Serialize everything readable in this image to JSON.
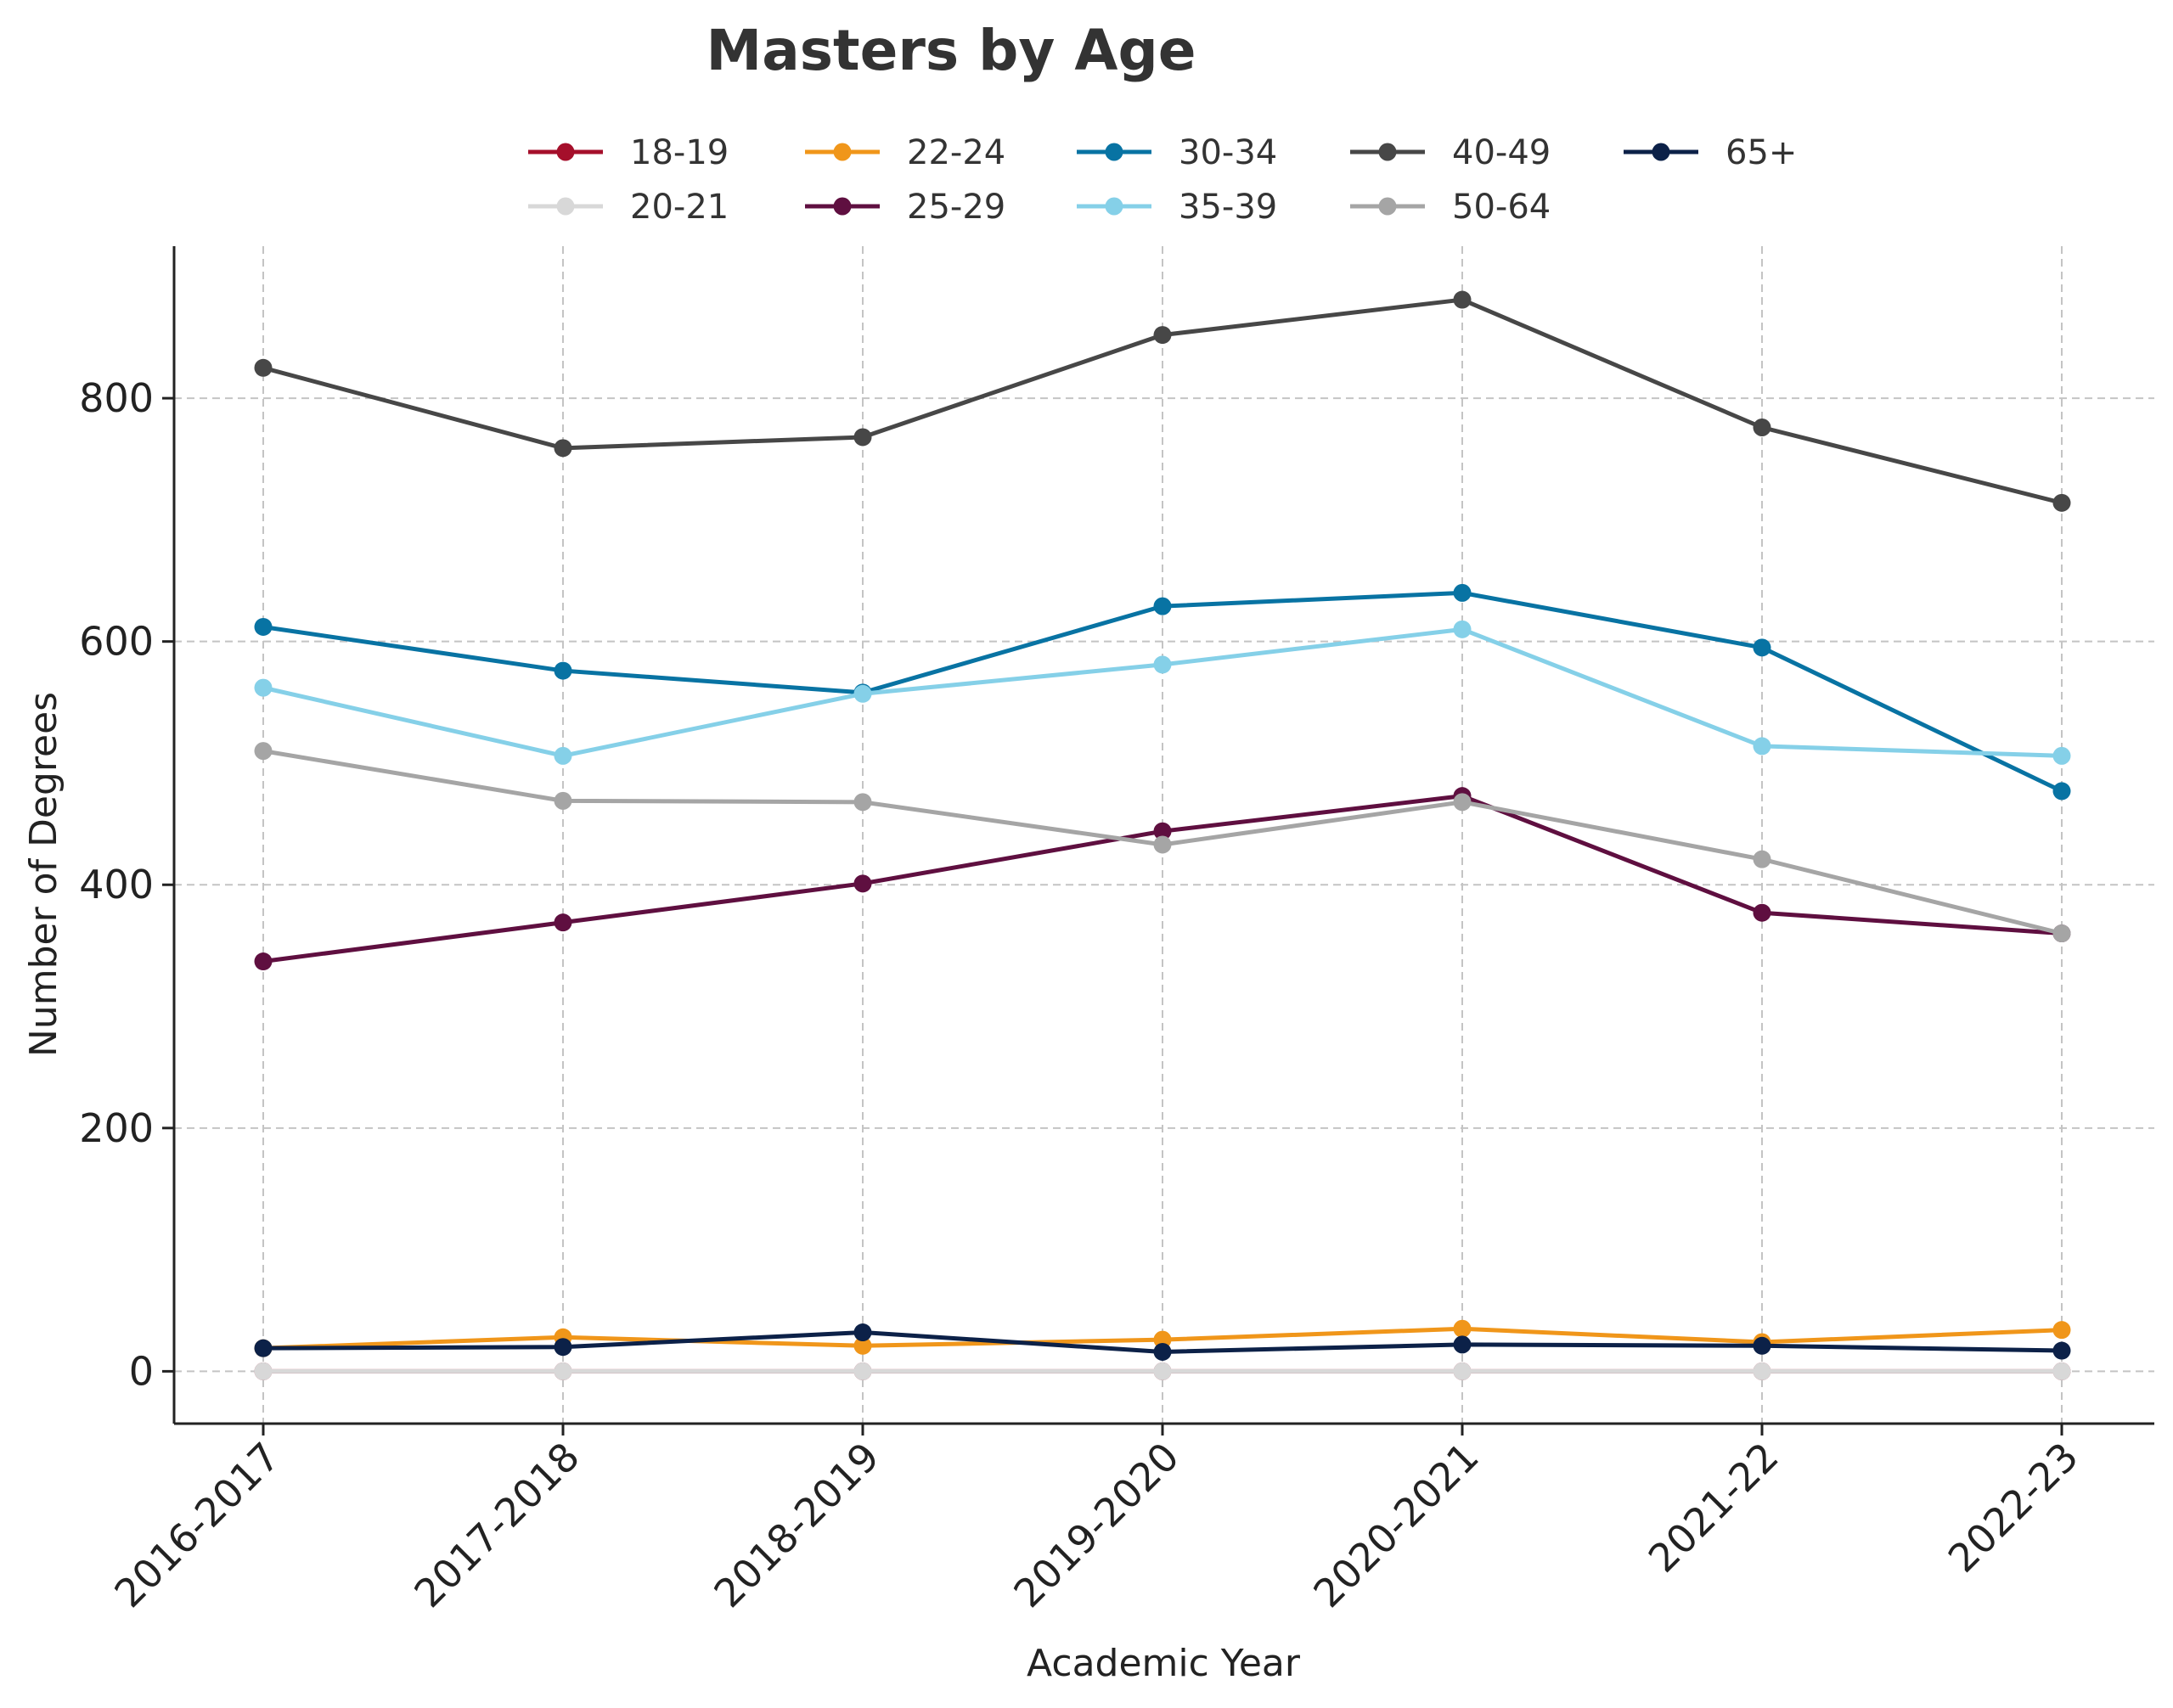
{
  "chart_data": {
    "type": "line",
    "title": "Masters by Age",
    "xlabel": "Academic Year",
    "ylabel": "Number of Degrees",
    "categories": [
      "2016-2017",
      "2017-2018",
      "2018-2019",
      "2019-2020",
      "2020-2021",
      "2021-22",
      "2022-23"
    ],
    "ylim": [
      -43,
      925
    ],
    "yticks": [
      0,
      200,
      400,
      600,
      800
    ],
    "grid": true,
    "legend": "top-center",
    "series": [
      {
        "name": "18-19",
        "color": "#A50F2B",
        "values": [
          0,
          0,
          0,
          0,
          0,
          0,
          0
        ]
      },
      {
        "name": "20-21",
        "color": "#D8D8D8",
        "values": [
          0,
          0,
          0,
          0,
          0,
          0,
          0
        ]
      },
      {
        "name": "22-24",
        "color": "#F0961A",
        "values": [
          19,
          28,
          21,
          26,
          35,
          24,
          34
        ]
      },
      {
        "name": "25-29",
        "color": "#5F0F40",
        "values": [
          337,
          369,
          401,
          444,
          473,
          377,
          360
        ]
      },
      {
        "name": "30-34",
        "color": "#0873A3",
        "values": [
          612,
          576,
          558,
          629,
          640,
          595,
          477
        ]
      },
      {
        "name": "35-39",
        "color": "#85D0E8",
        "values": [
          562,
          506,
          557,
          581,
          610,
          514,
          506
        ]
      },
      {
        "name": "40-49",
        "color": "#474747",
        "values": [
          825,
          759,
          768,
          852,
          881,
          776,
          714
        ]
      },
      {
        "name": "50-64",
        "color": "#A5A5A5",
        "values": [
          510,
          469,
          468,
          433,
          468,
          421,
          360
        ]
      },
      {
        "name": "65+",
        "color": "#0C2148",
        "values": [
          19,
          20,
          32,
          16,
          22,
          21,
          17
        ]
      }
    ]
  }
}
